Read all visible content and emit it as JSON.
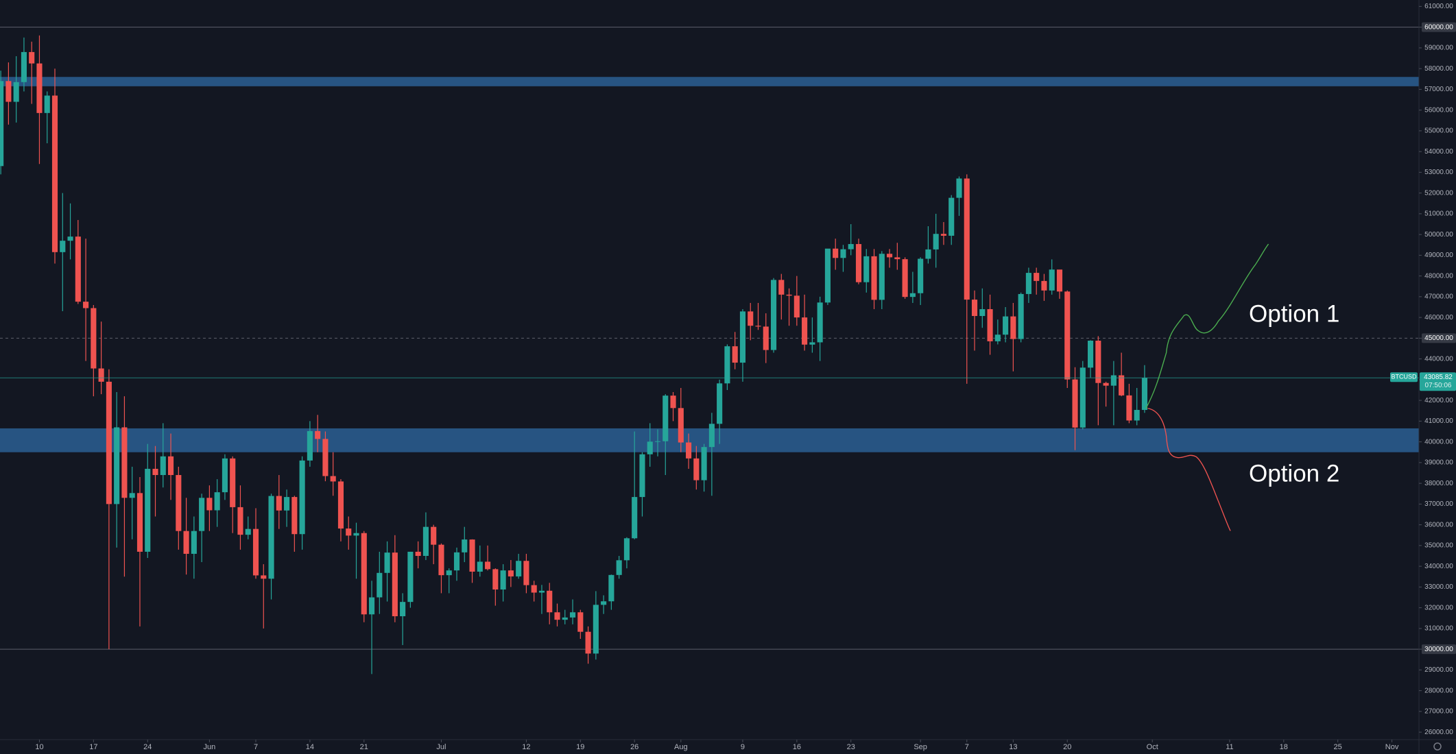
{
  "chart_data": {
    "type": "candlestick",
    "symbol": "BTCUSD",
    "countdown": "07:50:06",
    "up_color": "#26a69a",
    "down_color": "#ef5350",
    "candles": [
      [
        53300,
        57900,
        52900,
        57400
      ],
      [
        57400,
        58300,
        55300,
        56400
      ],
      [
        56400,
        58600,
        55400,
        57350
      ],
      [
        57350,
        59500,
        56900,
        58800
      ],
      [
        58800,
        59300,
        56300,
        58250
      ],
      [
        58250,
        59600,
        53400,
        55860
      ],
      [
        55860,
        56900,
        54400,
        56700
      ],
      [
        56700,
        58000,
        48600,
        49150
      ],
      [
        49150,
        52000,
        46300,
        49700
      ],
      [
        49700,
        51500,
        48800,
        49900
      ],
      [
        49900,
        50700,
        46650,
        46760
      ],
      [
        46760,
        49800,
        43900,
        46450
      ],
      [
        46450,
        46600,
        42200,
        43540
      ],
      [
        43540,
        45800,
        42300,
        42900
      ],
      [
        42900,
        43500,
        30000,
        37000
      ],
      [
        37000,
        42400,
        34900,
        40700
      ],
      [
        40700,
        42200,
        33500,
        37300
      ],
      [
        37300,
        38800,
        35300,
        37530
      ],
      [
        37530,
        38300,
        31100,
        34700
      ],
      [
        34700,
        39900,
        34400,
        38700
      ],
      [
        38700,
        39800,
        36400,
        38400
      ],
      [
        38400,
        40900,
        37800,
        39300
      ],
      [
        39300,
        40400,
        37200,
        38400
      ],
      [
        38400,
        38800,
        34800,
        35700
      ],
      [
        35700,
        37300,
        33600,
        34600
      ],
      [
        34600,
        36400,
        33400,
        35700
      ],
      [
        35700,
        37500,
        34200,
        37300
      ],
      [
        37300,
        37900,
        35700,
        36700
      ],
      [
        36700,
        38200,
        35900,
        37570
      ],
      [
        37570,
        39400,
        37200,
        39200
      ],
      [
        39200,
        39300,
        35600,
        36850
      ],
      [
        36850,
        37900,
        34800,
        35520
      ],
      [
        35520,
        36400,
        35300,
        35800
      ],
      [
        35800,
        36800,
        33400,
        33560
      ],
      [
        33560,
        34100,
        31000,
        33400
      ],
      [
        33400,
        37500,
        32400,
        37390
      ],
      [
        37390,
        38400,
        35800,
        36690
      ],
      [
        36690,
        37700,
        35900,
        37340
      ],
      [
        37340,
        37400,
        34700,
        35550
      ],
      [
        35550,
        39300,
        34800,
        39100
      ],
      [
        39100,
        41000,
        38800,
        40520
      ],
      [
        40520,
        41300,
        39500,
        40140
      ],
      [
        40140,
        40500,
        38100,
        38350
      ],
      [
        38350,
        39500,
        37400,
        38090
      ],
      [
        38090,
        38200,
        35200,
        35820
      ],
      [
        35820,
        36400,
        34800,
        35480
      ],
      [
        35480,
        36100,
        33400,
        35600
      ],
      [
        35600,
        35700,
        31300,
        31680
      ],
      [
        31680,
        33300,
        28800,
        32500
      ],
      [
        32500,
        34700,
        31700,
        33680
      ],
      [
        33680,
        35200,
        32300,
        34660
      ],
      [
        34660,
        35500,
        31300,
        31590
      ],
      [
        31590,
        32700,
        30200,
        32280
      ],
      [
        32280,
        34700,
        32000,
        34700
      ],
      [
        34700,
        35200,
        33900,
        34500
      ],
      [
        34500,
        36600,
        34300,
        35900
      ],
      [
        35900,
        36000,
        34100,
        35040
      ],
      [
        35040,
        35100,
        32700,
        33570
      ],
      [
        33570,
        33900,
        32700,
        33800
      ],
      [
        33800,
        34900,
        33300,
        34670
      ],
      [
        34670,
        35900,
        34200,
        35290
      ],
      [
        35290,
        35300,
        33200,
        33740
      ],
      [
        33740,
        35000,
        33500,
        34220
      ],
      [
        34220,
        35000,
        33800,
        33860
      ],
      [
        33860,
        33900,
        32100,
        32880
      ],
      [
        32880,
        34100,
        32300,
        33800
      ],
      [
        33800,
        34300,
        33000,
        33510
      ],
      [
        33510,
        34600,
        33400,
        34260
      ],
      [
        34260,
        34600,
        32700,
        33090
      ],
      [
        33090,
        33300,
        32300,
        32730
      ],
      [
        32730,
        33100,
        31700,
        32820
      ],
      [
        32820,
        33200,
        31200,
        31780
      ],
      [
        31780,
        32200,
        31100,
        31420
      ],
      [
        31420,
        31900,
        31200,
        31530
      ],
      [
        31530,
        32400,
        31200,
        31780
      ],
      [
        31780,
        31900,
        30500,
        30840
      ],
      [
        30840,
        31100,
        29300,
        29790
      ],
      [
        29790,
        32800,
        29500,
        32140
      ],
      [
        32140,
        32600,
        31700,
        32310
      ],
      [
        32310,
        33600,
        31900,
        33580
      ],
      [
        33580,
        34500,
        33400,
        34290
      ],
      [
        34290,
        35400,
        33900,
        35350
      ],
      [
        35350,
        40500,
        35300,
        37340
      ],
      [
        37340,
        39500,
        36400,
        39400
      ],
      [
        39400,
        40900,
        38800,
        40010
      ],
      [
        40010,
        40600,
        39300,
        40030
      ],
      [
        40030,
        42300,
        38400,
        42230
      ],
      [
        42230,
        42400,
        41000,
        41630
      ],
      [
        41630,
        42600,
        39500,
        39970
      ],
      [
        39970,
        40400,
        38700,
        39200
      ],
      [
        39200,
        39800,
        37700,
        38150
      ],
      [
        38150,
        39900,
        37600,
        39750
      ],
      [
        39750,
        41400,
        37400,
        40870
      ],
      [
        40870,
        43000,
        39900,
        42820
      ],
      [
        42820,
        44700,
        42500,
        44610
      ],
      [
        44610,
        45300,
        43500,
        43820
      ],
      [
        43820,
        46400,
        42900,
        46290
      ],
      [
        46290,
        46700,
        44900,
        45600
      ],
      [
        45600,
        46700,
        45400,
        45560
      ],
      [
        45560,
        46200,
        43800,
        44430
      ],
      [
        44430,
        47900,
        44300,
        47810
      ],
      [
        47810,
        48100,
        45900,
        47100
      ],
      [
        47100,
        47400,
        45600,
        47050
      ],
      [
        47050,
        48000,
        45600,
        46000
      ],
      [
        46000,
        47100,
        44400,
        44690
      ],
      [
        44690,
        46000,
        44300,
        44800
      ],
      [
        44800,
        47000,
        43900,
        46720
      ],
      [
        46720,
        49300,
        46600,
        49320
      ],
      [
        49320,
        49800,
        48300,
        48870
      ],
      [
        48870,
        49500,
        48200,
        49290
      ],
      [
        49290,
        50500,
        49000,
        49540
      ],
      [
        49540,
        49800,
        47600,
        47700
      ],
      [
        47700,
        49300,
        47200,
        48950
      ],
      [
        48950,
        49300,
        46400,
        46850
      ],
      [
        46850,
        49200,
        46400,
        49070
      ],
      [
        49070,
        49300,
        48400,
        48900
      ],
      [
        48900,
        49600,
        48300,
        48810
      ],
      [
        48810,
        48900,
        46900,
        46990
      ],
      [
        46990,
        48200,
        46700,
        47170
      ],
      [
        47170,
        48900,
        46600,
        48830
      ],
      [
        48830,
        50400,
        48600,
        49280
      ],
      [
        49280,
        51000,
        48400,
        50030
      ],
      [
        50030,
        50600,
        49500,
        49940
      ],
      [
        49940,
        51900,
        49500,
        51770
      ],
      [
        51770,
        52800,
        50900,
        52700
      ],
      [
        52700,
        52900,
        42800,
        46860
      ],
      [
        46860,
        47300,
        44400,
        46070
      ],
      [
        46070,
        47400,
        45500,
        46400
      ],
      [
        46400,
        47100,
        44200,
        44850
      ],
      [
        44850,
        45900,
        44700,
        45170
      ],
      [
        45170,
        46500,
        44800,
        46050
      ],
      [
        46050,
        46700,
        43400,
        44960
      ],
      [
        44960,
        47200,
        44800,
        47130
      ],
      [
        47130,
        48400,
        46700,
        48150
      ],
      [
        48150,
        48400,
        47100,
        47760
      ],
      [
        47760,
        48100,
        46800,
        47300
      ],
      [
        47300,
        48800,
        47100,
        48310
      ],
      [
        48310,
        48300,
        46900,
        47250
      ],
      [
        47250,
        47300,
        42600,
        43010
      ],
      [
        43010,
        43600,
        39600,
        40690
      ],
      [
        40690,
        43900,
        40600,
        43580
      ],
      [
        43580,
        44900,
        43100,
        44880
      ],
      [
        44880,
        45100,
        40800,
        42840
      ],
      [
        42840,
        42900,
        41700,
        42710
      ],
      [
        42710,
        43900,
        40800,
        43210
      ],
      [
        43210,
        44300,
        42200,
        42240
      ],
      [
        42240,
        42800,
        40900,
        41030
      ],
      [
        41030,
        42600,
        40800,
        41540
      ],
      [
        41540,
        43700,
        41400,
        43085.82
      ]
    ],
    "xlim": [
      -0.1,
      183.5
    ],
    "xticks": [
      {
        "value": 5,
        "label": "10"
      },
      {
        "value": 12,
        "label": "17"
      },
      {
        "value": 19,
        "label": "24"
      },
      {
        "value": 27,
        "label": "Jun"
      },
      {
        "value": 33,
        "label": "7"
      },
      {
        "value": 40,
        "label": "14"
      },
      {
        "value": 47,
        "label": "21"
      },
      {
        "value": 57,
        "label": "Jul"
      },
      {
        "value": 68,
        "label": "12"
      },
      {
        "value": 75,
        "label": "19"
      },
      {
        "value": 82,
        "label": "26"
      },
      {
        "value": 88,
        "label": "Aug"
      },
      {
        "value": 96,
        "label": "9"
      },
      {
        "value": 103,
        "label": "16"
      },
      {
        "value": 110,
        "label": "23"
      },
      {
        "value": 119,
        "label": "Sep"
      },
      {
        "value": 125,
        "label": "7"
      },
      {
        "value": 131,
        "label": "13"
      },
      {
        "value": 138,
        "label": "20"
      },
      {
        "value": 149,
        "label": "Oct"
      },
      {
        "value": 159,
        "label": "11"
      },
      {
        "value": 166,
        "label": "18"
      },
      {
        "value": 173,
        "label": "25"
      },
      {
        "value": 180,
        "label": "Nov"
      }
    ],
    "ylim": [
      25640,
      61310
    ],
    "yticks": [
      {
        "value": 26000,
        "label": "26000.00"
      },
      {
        "value": 27000,
        "label": "27000.00"
      },
      {
        "value": 28000,
        "label": "28000.00"
      },
      {
        "value": 29000,
        "label": "29000.00"
      },
      {
        "value": 30000,
        "label": "30000.00"
      },
      {
        "value": 31000,
        "label": "31000.00"
      },
      {
        "value": 32000,
        "label": "32000.00"
      },
      {
        "value": 33000,
        "label": "33000.00"
      },
      {
        "value": 34000,
        "label": "34000.00"
      },
      {
        "value": 35000,
        "label": "35000.00"
      },
      {
        "value": 36000,
        "label": "36000.00"
      },
      {
        "value": 37000,
        "label": "37000.00"
      },
      {
        "value": 38000,
        "label": "38000.00"
      },
      {
        "value": 39000,
        "label": "39000.00"
      },
      {
        "value": 40000,
        "label": "40000.00"
      },
      {
        "value": 41000,
        "label": "41000.00"
      },
      {
        "value": 42000,
        "label": "42000.00"
      },
      {
        "value": 43000,
        "label": "43000.00"
      },
      {
        "value": 44000,
        "label": "44000.00"
      },
      {
        "value": 45000,
        "label": "45000.00"
      },
      {
        "value": 46000,
        "label": "46000.00"
      },
      {
        "value": 47000,
        "label": "47000.00"
      },
      {
        "value": 48000,
        "label": "48000.00"
      },
      {
        "value": 49000,
        "label": "49000.00"
      },
      {
        "value": 50000,
        "label": "50000.00"
      },
      {
        "value": 51000,
        "label": "51000.00"
      },
      {
        "value": 52000,
        "label": "52000.00"
      },
      {
        "value": 53000,
        "label": "53000.00"
      },
      {
        "value": 54000,
        "label": "54000.00"
      },
      {
        "value": 55000,
        "label": "55000.00"
      },
      {
        "value": 56000,
        "label": "56000.00"
      },
      {
        "value": 57000,
        "label": "57000.00"
      },
      {
        "value": 58000,
        "label": "58000.00"
      },
      {
        "value": 59000,
        "label": "59000.00"
      },
      {
        "value": 60000,
        "label": "60000.00"
      },
      {
        "value": 61000,
        "label": "61000.00"
      }
    ],
    "grid": false,
    "zones": [
      {
        "from": 57150,
        "to": 57600,
        "color": "#2b5f93"
      },
      {
        "from": 39500,
        "to": 40650,
        "color": "#2b5f93"
      }
    ],
    "hlines": [
      {
        "value": 60000,
        "style": "solid"
      },
      {
        "value": 45000,
        "style": "dashed"
      },
      {
        "value": 30000,
        "style": "solid"
      }
    ],
    "annotations": [
      "Option 1",
      "Option 2"
    ]
  }
}
